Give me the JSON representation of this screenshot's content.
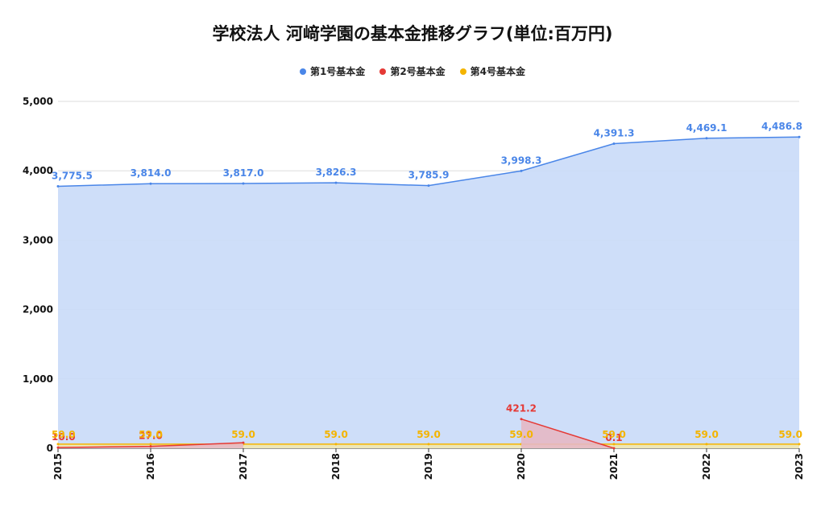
{
  "chart_data": {
    "type": "area",
    "title": "学校法人 河﨑学園の基本金推移グラフ(単位:百万円)",
    "xlabel": "",
    "ylabel": "",
    "ylim": [
      0,
      5000
    ],
    "y_ticks": [
      0,
      1000,
      2000,
      3000,
      4000,
      5000
    ],
    "y_tick_labels": [
      "0",
      "1,000",
      "2,000",
      "3,000",
      "4,000",
      "5,000"
    ],
    "x": [
      "2015",
      "2016",
      "2017",
      "2018",
      "2019",
      "2020",
      "2021",
      "2022",
      "2023"
    ],
    "legend_position": "top-center",
    "grid": true,
    "series": [
      {
        "name": "第1号基本金",
        "color": "#4a86e8",
        "fill": "#c9daf8",
        "values": [
          3775.5,
          3814.0,
          3817.0,
          3826.3,
          3785.9,
          3998.3,
          4391.3,
          4469.1,
          4486.8
        ],
        "labels": [
          "3,775.5",
          "3,814.0",
          "3,817.0",
          "3,826.3",
          "3,785.9",
          "3,998.3",
          "4,391.3",
          "4,469.1",
          "4,486.8"
        ]
      },
      {
        "name": "第2号基本金",
        "color": "#e53935",
        "fill": "#e6b8c4",
        "values": [
          10.0,
          27.0,
          80.0,
          null,
          null,
          421.2,
          0.1,
          null,
          null
        ],
        "labels": [
          "10.0",
          "27.0",
          "",
          "",
          "",
          "421.2",
          "0.1",
          "",
          ""
        ]
      },
      {
        "name": "第4号基本金",
        "color": "#f4b400",
        "fill": "#f1e7b0",
        "values": [
          59.0,
          59.0,
          59.0,
          59.0,
          59.0,
          59.0,
          59.0,
          59.0,
          59.0
        ],
        "labels": [
          "59.0",
          "59.0",
          "59.0",
          "59.0",
          "59.0",
          "59.0",
          "59.0",
          "59.0",
          "59.0"
        ]
      }
    ]
  }
}
